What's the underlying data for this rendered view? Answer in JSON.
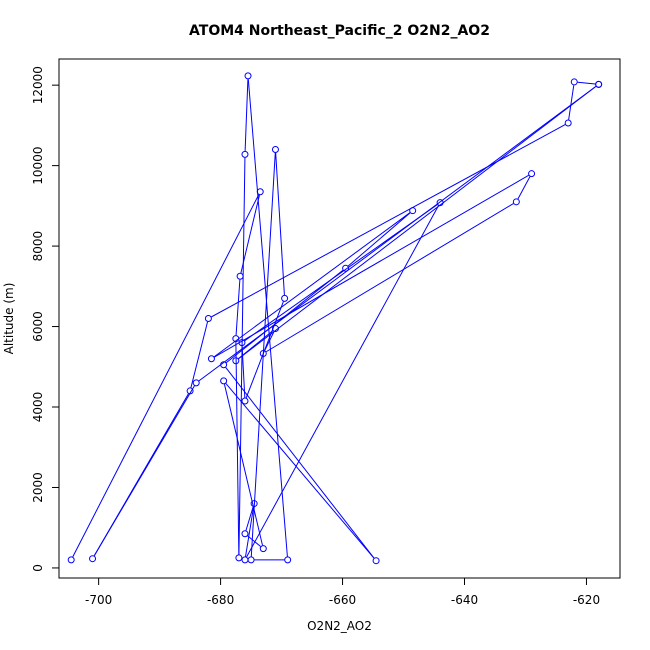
{
  "chart_data": {
    "type": "line",
    "title": "ATOM4 Northeast_Pacific_2 O2N2_AO2",
    "xlabel": "O2N2_AO2",
    "ylabel": "Altitude (m)",
    "xlim": [
      -706.5,
      -614.5
    ],
    "ylim": [
      -250,
      12650
    ],
    "xticks": [
      -700,
      -680,
      -660,
      -640,
      -620
    ],
    "yticks": [
      0,
      2000,
      4000,
      6000,
      8000,
      10000,
      12000
    ],
    "xtick_labels": [
      "-700",
      "-680",
      "-660",
      "-640",
      "-620"
    ],
    "ytick_labels": [
      "0",
      "2000",
      "4000",
      "6000",
      "8000",
      "10000",
      "12000"
    ],
    "grid": false,
    "series_color": "#0000ff",
    "marker": "open-circle",
    "series": [
      {
        "points": [
          {
            "x": -704.5,
            "y": 200
          },
          {
            "x": -673.5,
            "y": 9350
          },
          {
            "x": -676.8,
            "y": 7250
          },
          {
            "x": -677.5,
            "y": 5700
          },
          {
            "x": -677.0,
            "y": 250
          },
          {
            "x": -676.0,
            "y": 10280
          },
          {
            "x": -675.5,
            "y": 12230
          },
          {
            "x": -669.0,
            "y": 200
          },
          {
            "x": -675.0,
            "y": 200
          },
          {
            "x": -671.0,
            "y": 10400
          },
          {
            "x": -669.5,
            "y": 6700
          },
          {
            "x": -676.0,
            "y": 4150
          },
          {
            "x": -676.5,
            "y": 5600
          },
          {
            "x": -644.0,
            "y": 9080
          },
          {
            "x": -676.0,
            "y": 200
          },
          {
            "x": -674.5,
            "y": 1600
          },
          {
            "x": -676.0,
            "y": 850
          },
          {
            "x": -673.0,
            "y": 480
          },
          {
            "x": -679.5,
            "y": 4650
          },
          {
            "x": -654.5,
            "y": 180
          },
          {
            "x": -679.5,
            "y": 5050
          },
          {
            "x": -659.5,
            "y": 7450
          },
          {
            "x": -648.5,
            "y": 8880
          },
          {
            "x": -681.5,
            "y": 5200
          },
          {
            "x": -629.0,
            "y": 9800
          },
          {
            "x": -631.5,
            "y": 9100
          },
          {
            "x": -673.0,
            "y": 5330
          },
          {
            "x": -671.0,
            "y": 5950
          },
          {
            "x": -677.5,
            "y": 5150
          },
          {
            "x": -618.0,
            "y": 12020
          },
          {
            "x": -684.0,
            "y": 4600
          },
          {
            "x": -701.0,
            "y": 230
          },
          {
            "x": -685.0,
            "y": 4400
          },
          {
            "x": -682.0,
            "y": 6200
          },
          {
            "x": -623.0,
            "y": 11060
          },
          {
            "x": -622.0,
            "y": 12080
          },
          {
            "x": -618.0,
            "y": 12020
          }
        ]
      }
    ]
  }
}
